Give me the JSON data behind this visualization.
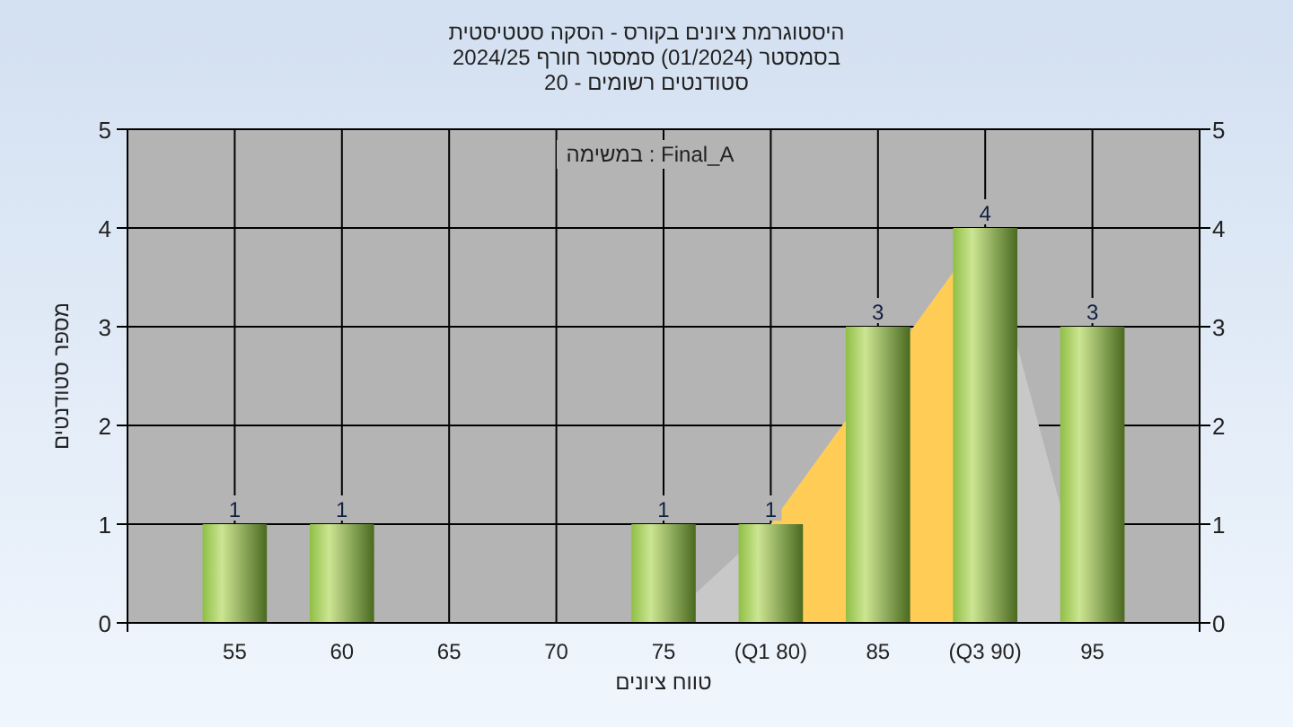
{
  "chart_data": {
    "type": "bar",
    "title": "היסטוגרמת ציונים בקורס - הסקה סטטיסטית",
    "subtitle": "בסמסטר  (01/2024)  סמסטר חורף 2024/25\nסטודנטים רשומים - 20",
    "xlabel": "טווח ציונים",
    "ylabel": "מספר סטודנטים",
    "annotations": [
      "במשימה : Final_A"
    ],
    "x": [
      55,
      60,
      65,
      70,
      75,
      80,
      85,
      90,
      95
    ],
    "series": [
      {
        "type": "area",
        "x": [
          75,
          80,
          90,
          95
        ],
        "values": [
          0,
          1,
          4,
          0
        ],
        "color": "#c8c8c8"
      },
      {
        "type": "area",
        "x": [
          80,
          90
        ],
        "values": [
          1,
          4
        ],
        "color": "#ffcc55"
      },
      {
        "values": [
          1,
          1,
          0,
          0,
          1,
          1,
          3,
          4,
          3
        ],
        "color": "#8fbf45",
        "value_labels": [
          "1",
          "1",
          null,
          null,
          "1",
          "1",
          "3",
          "4",
          "3"
        ]
      }
    ],
    "xlim": [
      50,
      100
    ],
    "xticks": [
      55,
      60,
      65,
      70,
      75,
      {
        "value": 80,
        "label": "(Q1 80)"
      },
      85,
      {
        "value": 90,
        "label": "(Q3 90)"
      },
      95
    ],
    "ylim": [
      0,
      5
    ],
    "yticks": [
      0,
      1,
      2,
      3,
      4,
      5
    ],
    "y2lim": [
      0,
      5
    ],
    "y2ticks": [
      0,
      1,
      2,
      3,
      4,
      5
    ],
    "grid": true
  }
}
